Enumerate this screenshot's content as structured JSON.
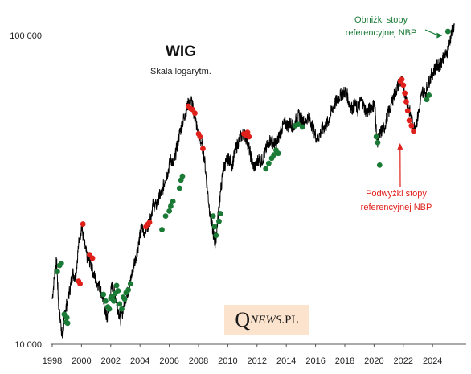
{
  "chart_data": {
    "type": "line",
    "title": "WIG",
    "subtitle": "Skala logarytm.",
    "xlabel": "",
    "ylabel": "",
    "y_scale": "log",
    "xlim": [
      1998.0,
      2025.6
    ],
    "ylim": [
      10000,
      110000
    ],
    "x_ticks": [
      1998,
      2000,
      2002,
      2004,
      2006,
      2008,
      2010,
      2012,
      2014,
      2016,
      2018,
      2020,
      2022,
      2024
    ],
    "x_tick_labels": [
      "1998",
      "2000",
      "2002",
      "2004",
      "2006",
      "2008",
      "2010",
      "2012",
      "2014",
      "2016",
      "2018",
      "2020",
      "2022",
      "2024"
    ],
    "y_ticks": [
      10000,
      100000
    ],
    "y_tick_labels": [
      "10 000",
      "100 000"
    ],
    "grid": false,
    "colors": {
      "line": "#000000",
      "cuts": "#1a7a36",
      "hikes": "#e0201b"
    },
    "series": [
      {
        "type": "line",
        "x": [
          1998.0,
          1998.2,
          1998.3,
          1998.45,
          1998.6,
          1998.7,
          1998.85,
          1999.0,
          1999.2,
          1999.4,
          1999.6,
          1999.8,
          2000.0,
          2000.2,
          2000.4,
          2000.6,
          2000.8,
          2001.0,
          2001.2,
          2001.4,
          2001.6,
          2001.75,
          2001.9,
          2002.1,
          2002.3,
          2002.5,
          2002.7,
          2002.9,
          2003.1,
          2003.3,
          2003.5,
          2003.7,
          2003.9,
          2004.1,
          2004.3,
          2004.5,
          2004.7,
          2004.9,
          2005.1,
          2005.3,
          2005.5,
          2005.7,
          2005.9,
          2006.1,
          2006.3,
          2006.5,
          2006.7,
          2006.9,
          2007.1,
          2007.3,
          2007.5,
          2007.65,
          2007.8,
          2008.0,
          2008.2,
          2008.4,
          2008.6,
          2008.8,
          2009.0,
          2009.15,
          2009.3,
          2009.5,
          2009.7,
          2009.9,
          2010.1,
          2010.3,
          2010.5,
          2010.7,
          2010.9,
          2011.1,
          2011.3,
          2011.5,
          2011.7,
          2011.9,
          2012.1,
          2012.3,
          2012.5,
          2012.7,
          2012.9,
          2013.1,
          2013.3,
          2013.5,
          2013.7,
          2013.9,
          2014.1,
          2014.3,
          2014.5,
          2014.7,
          2014.9,
          2015.1,
          2015.3,
          2015.5,
          2015.7,
          2015.9,
          2016.1,
          2016.3,
          2016.5,
          2016.7,
          2016.9,
          2017.1,
          2017.3,
          2017.5,
          2017.7,
          2017.9,
          2018.1,
          2018.3,
          2018.5,
          2018.7,
          2018.9,
          2019.1,
          2019.3,
          2019.5,
          2019.7,
          2019.9,
          2020.05,
          2020.2,
          2020.35,
          2020.5,
          2020.7,
          2020.9,
          2021.1,
          2021.3,
          2021.5,
          2021.7,
          2021.9,
          2022.1,
          2022.3,
          2022.5,
          2022.7,
          2022.9,
          2023.1,
          2023.3,
          2023.5,
          2023.7,
          2023.9,
          2024.1,
          2024.3,
          2024.5,
          2024.7,
          2024.9,
          2025.1,
          2025.3,
          2025.5
        ],
        "y": [
          14000,
          17500,
          18500,
          13000,
          11500,
          10500,
          12500,
          13500,
          15000,
          17000,
          16500,
          21000,
          24000,
          21000,
          19000,
          18500,
          17000,
          16000,
          15500,
          14500,
          13000,
          12000,
          14000,
          15500,
          14500,
          13000,
          12000,
          13500,
          14500,
          15500,
          17500,
          19000,
          21000,
          24000,
          23000,
          24000,
          25500,
          28500,
          28000,
          30000,
          31000,
          34000,
          36000,
          40000,
          38000,
          43000,
          48000,
          52000,
          56000,
          60000,
          62000,
          57000,
          53000,
          47000,
          45000,
          40000,
          32000,
          26000,
          23000,
          21000,
          25000,
          31000,
          37000,
          39000,
          40000,
          38000,
          42000,
          45000,
          47000,
          48000,
          46000,
          42000,
          38000,
          37500,
          40000,
          39000,
          41000,
          44000,
          46000,
          45000,
          44000,
          47000,
          50000,
          52000,
          51000,
          52000,
          50000,
          54000,
          55000,
          53000,
          52000,
          55000,
          52000,
          49000,
          46000,
          48000,
          50000,
          51000,
          53000,
          57000,
          60000,
          62000,
          64000,
          65000,
          66000,
          60000,
          58000,
          60000,
          57000,
          62000,
          59000,
          56000,
          58000,
          59000,
          60000,
          45000,
          47000,
          49000,
          50000,
          55000,
          58000,
          63000,
          66000,
          70000,
          71000,
          65000,
          60000,
          55000,
          50000,
          52000,
          58000,
          66000,
          65000,
          70000,
          74000,
          77000,
          80000,
          80000,
          85000,
          86000,
          92000,
          102000,
          108000
        ]
      },
      {
        "name": "Obniżki stopy referencyjnej NBP",
        "type": "scatter",
        "x": [
          1998.35,
          1998.5,
          1998.62,
          1998.82,
          1998.95,
          1999.0,
          1999.05,
          2001.5,
          2001.65,
          2001.8,
          2001.9,
          2002.0,
          2002.1,
          2002.2,
          2002.3,
          2002.4,
          2002.5,
          2002.6,
          2002.75,
          2002.85,
          2002.95,
          2003.05,
          2003.2,
          2003.35,
          2005.5,
          2005.75,
          2006.0,
          2006.1,
          2006.25,
          2006.7,
          2006.8,
          2006.9,
          2009.0,
          2009.1,
          2009.2,
          2009.4,
          2009.5,
          2012.6,
          2012.8,
          2013.0,
          2013.15,
          2013.3,
          2013.45,
          2014.6,
          2014.8,
          2015.1,
          2020.15,
          2020.25,
          2020.38,
          2023.6,
          2023.75,
          2025.05
        ],
        "y": [
          17200,
          18000,
          18300,
          12500,
          11800,
          12200,
          11700,
          14500,
          13800,
          13200,
          13000,
          14100,
          14300,
          13800,
          14600,
          15500,
          14900,
          13500,
          13000,
          14200,
          14000,
          14700,
          15000,
          15700,
          23500,
          26000,
          27000,
          28000,
          29000,
          32000,
          34000,
          35000,
          26000,
          24000,
          22500,
          25000,
          26500,
          37000,
          38500,
          40000,
          41000,
          42500,
          41500,
          51000,
          51500,
          50500,
          47000,
          45000,
          38000,
          62000,
          64000,
          103000
        ]
      },
      {
        "name": "Podwyżki stopy referencyjnej NBP",
        "type": "scatter",
        "x": [
          1999.8,
          1999.9,
          2000.1,
          2000.55,
          2000.75,
          2004.4,
          2004.55,
          2004.65,
          2007.3,
          2007.45,
          2007.6,
          2007.75,
          2008.0,
          2008.1,
          2008.3,
          2011.1,
          2011.25,
          2011.35,
          2011.45,
          2021.8,
          2021.9,
          2022.0,
          2022.1,
          2022.2,
          2022.3,
          2022.4,
          2022.55,
          2022.7
        ],
        "y": [
          16000,
          15700,
          24500,
          19500,
          19000,
          24000,
          24500,
          24800,
          59000,
          58000,
          57500,
          56000,
          48000,
          47000,
          43000,
          48000,
          47500,
          48500,
          47000,
          71000,
          72000,
          69000,
          65000,
          61000,
          57000,
          53000,
          51000,
          49000
        ]
      }
    ],
    "annotations": [
      {
        "text": [
          "Obniżki stopy",
          "referencyjnej NBP"
        ],
        "color": "green",
        "arrow_to": [
          2025.0,
          100500
        ]
      },
      {
        "text": [
          "Podwyżki stopy",
          "referencyjnej NBP"
        ],
        "color": "red",
        "arrow_to": [
          2022.0,
          47000
        ]
      }
    ]
  },
  "watermark": {
    "q": "Q",
    "rest": "NEWS",
    "dot_pl": ".PL"
  }
}
